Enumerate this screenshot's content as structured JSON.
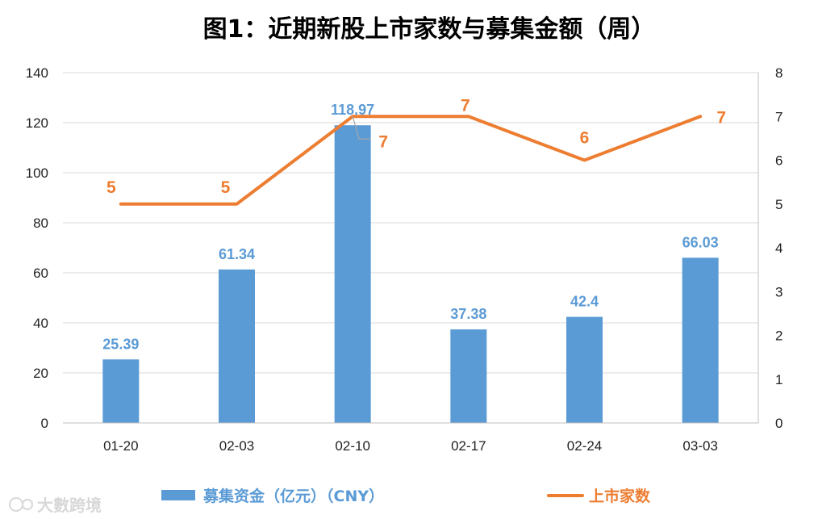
{
  "chart_data": {
    "type": "bar",
    "title": "图1：近期新股上市家数与募集金额（周）",
    "categories": [
      "01-20",
      "02-03",
      "02-10",
      "02-17",
      "02-24",
      "03-03"
    ],
    "series": [
      {
        "name": "募集资金（亿元）（CNY）",
        "type": "bar",
        "axis": "left",
        "color": "#5b9bd5",
        "values": [
          25.39,
          61.34,
          118.97,
          37.38,
          42.4,
          66.03
        ],
        "labels": [
          "25.39",
          "61.34",
          "118.97",
          "37.38",
          "42.4",
          "66.03"
        ]
      },
      {
        "name": "上市家数",
        "type": "line",
        "axis": "right",
        "color": "#ed7d31",
        "values": [
          5,
          5,
          7,
          7,
          6,
          7
        ],
        "labels": [
          "5",
          "5",
          "7",
          "7",
          "6",
          "7"
        ]
      }
    ],
    "y_left": {
      "min": 0,
      "max": 140,
      "ticks": [
        "0",
        "20",
        "40",
        "60",
        "80",
        "100",
        "120",
        "140"
      ]
    },
    "y_right": {
      "min": 0,
      "max": 8,
      "ticks": [
        "0",
        "1",
        "2",
        "3",
        "4",
        "5",
        "6",
        "7",
        "8"
      ]
    },
    "grid": true,
    "legend_position": "bottom"
  },
  "watermark": {
    "text": "大數跨境",
    "color": "#d8d8d8"
  }
}
